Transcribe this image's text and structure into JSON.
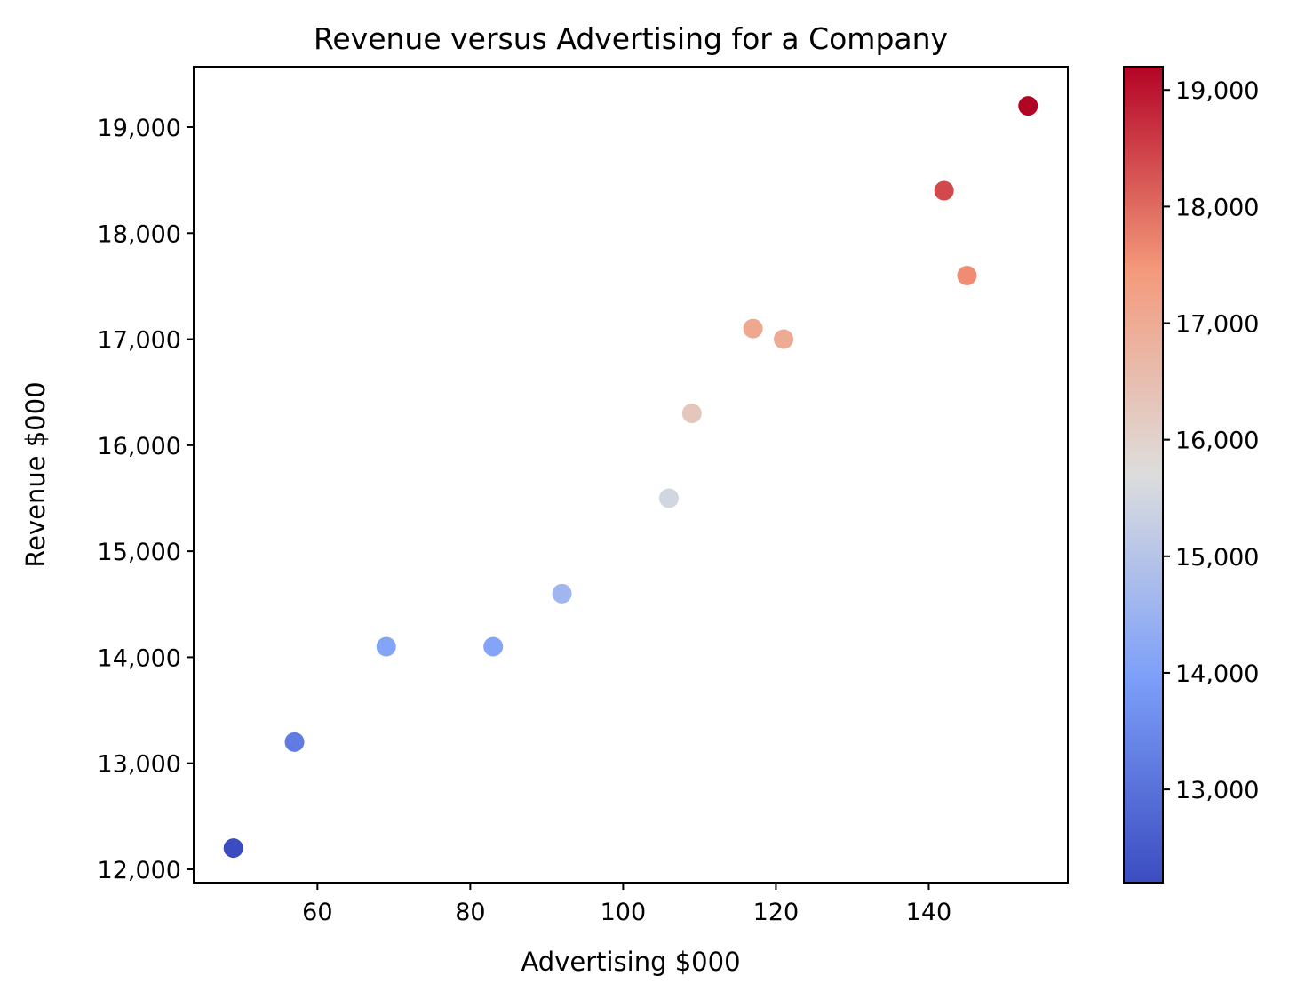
{
  "chart_data": {
    "type": "scatter",
    "title": "Revenue versus Advertising for a Company",
    "xlabel": "Advertising $000",
    "ylabel": "Revenue $000",
    "xlim": [
      43.8,
      158.2
    ],
    "ylim": [
      11874,
      19570
    ],
    "xticks": [
      60,
      80,
      100,
      120,
      140
    ],
    "xtick_labels": [
      "60",
      "80",
      "100",
      "120",
      "140"
    ],
    "yticks": [
      12000,
      13000,
      14000,
      15000,
      16000,
      17000,
      18000,
      19000
    ],
    "ytick_labels": [
      "12,000",
      "13,000",
      "14,000",
      "15,000",
      "16,000",
      "17,000",
      "18,000",
      "19,000"
    ],
    "grid": false,
    "colormap": "coolwarm",
    "color_by": "y",
    "colorbar": {
      "range": [
        12200,
        19200
      ],
      "ticks": [
        13000,
        14000,
        15000,
        16000,
        17000,
        18000,
        19000
      ],
      "tick_labels": [
        "13,000",
        "14,000",
        "15,000",
        "16,000",
        "17,000",
        "18,000",
        "19,000"
      ]
    },
    "points": [
      {
        "x": 49,
        "y": 12200
      },
      {
        "x": 57,
        "y": 13200
      },
      {
        "x": 69,
        "y": 14100
      },
      {
        "x": 83,
        "y": 14100
      },
      {
        "x": 92,
        "y": 14600
      },
      {
        "x": 106,
        "y": 15500
      },
      {
        "x": 109,
        "y": 16300
      },
      {
        "x": 117,
        "y": 17100
      },
      {
        "x": 121,
        "y": 17000
      },
      {
        "x": 142,
        "y": 18400
      },
      {
        "x": 145,
        "y": 17600
      },
      {
        "x": 153,
        "y": 19200
      }
    ]
  }
}
